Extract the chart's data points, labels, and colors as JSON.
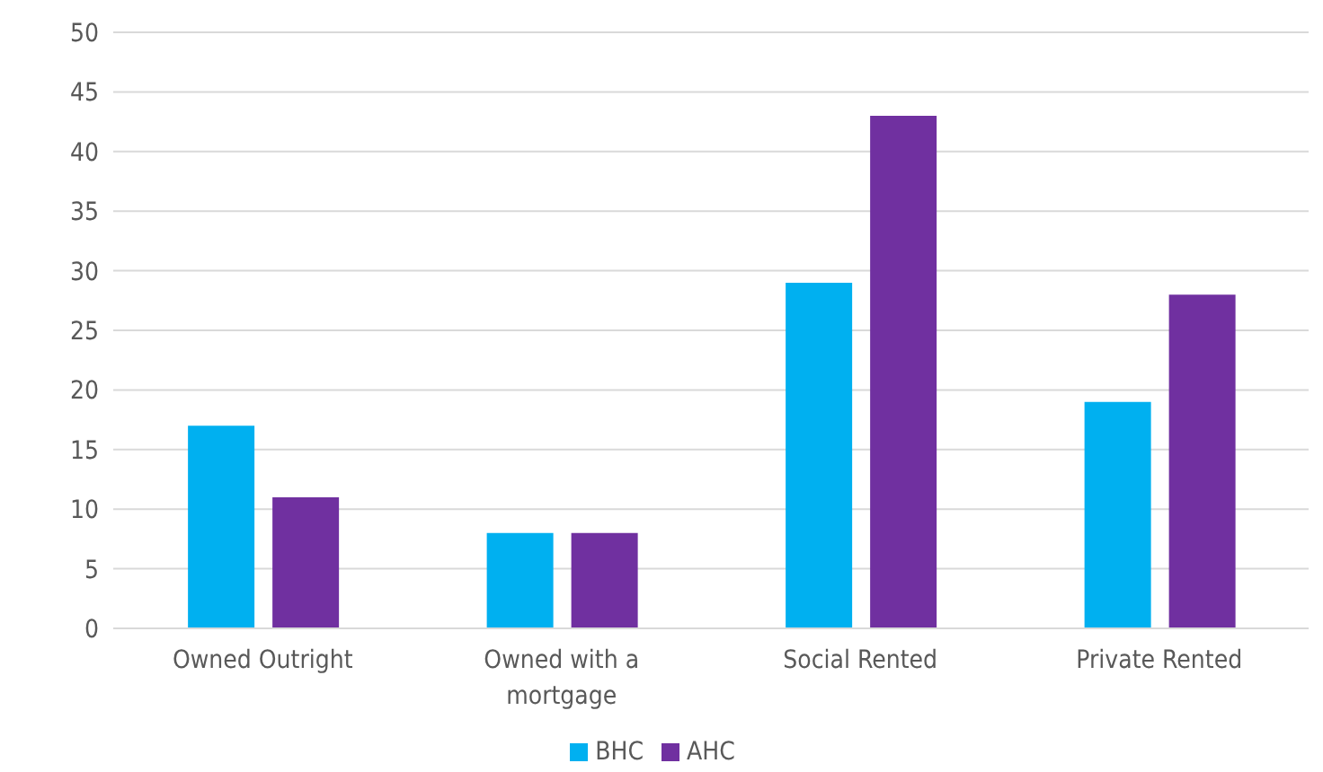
{
  "chart_data": {
    "type": "bar",
    "categories": [
      "Owned Outright",
      "Owned with a mortgage",
      "Social Rented",
      "Private Rented"
    ],
    "series": [
      {
        "name": "BHC",
        "color": "#00b0f0",
        "values": [
          17,
          8,
          29,
          19
        ]
      },
      {
        "name": "AHC",
        "color": "#7030a0",
        "values": [
          11,
          8,
          43,
          28
        ]
      }
    ],
    "ylim": [
      0,
      50
    ],
    "yticks": [
      0,
      5,
      10,
      15,
      20,
      25,
      30,
      35,
      40,
      45,
      50
    ],
    "grid": "y",
    "legend": "bottom"
  }
}
